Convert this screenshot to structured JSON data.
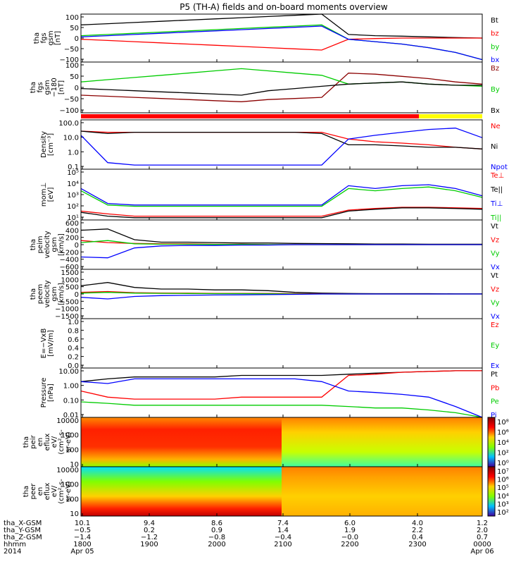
{
  "figure": {
    "title": "P5 (TH-A) fields and on-board moments overview"
  },
  "chart_data": [
    {
      "type": "line",
      "panel_id": "fgs_gsm",
      "ylabel": [
        "tha",
        "fgs",
        "gsm",
        "[nT]"
      ],
      "yticks": [
        "100",
        "50",
        "0",
        "−50",
        "−100"
      ],
      "ylim": [
        -100,
        100
      ],
      "series": [
        {
          "name": "Bt",
          "color": "#000000",
          "values": [
            55,
            60,
            65,
            70,
            75,
            80,
            85,
            90,
            95,
            100,
            15,
            10,
            8,
            5,
            2,
            0
          ]
        },
        {
          "name": "bz",
          "color": "#ff0000",
          "values": [
            -5,
            -10,
            -15,
            -20,
            -25,
            -30,
            -35,
            -40,
            -45,
            -50,
            -5,
            -2,
            0,
            0,
            0,
            0
          ]
        },
        {
          "name": "by",
          "color": "#00cc00",
          "values": [
            10,
            15,
            20,
            25,
            30,
            35,
            40,
            45,
            50,
            55,
            -5,
            -15,
            -25,
            -40,
            -60,
            -90
          ]
        },
        {
          "name": "bx",
          "color": "#0000ff",
          "values": [
            5,
            10,
            15,
            20,
            25,
            30,
            35,
            40,
            45,
            50,
            -5,
            -15,
            -25,
            -40,
            -60,
            -90
          ]
        }
      ]
    },
    {
      "type": "line",
      "panel_id": "fgs_gsm_180",
      "ylabel": [
        "tha",
        "fgs",
        "gsm",
        "−180",
        "[nT]"
      ],
      "yticks": [
        "100",
        "50",
        "0",
        "−50",
        "−100"
      ],
      "ylim": [
        -120,
        110
      ],
      "series": [
        {
          "name": "Bz",
          "color": "#8b0000",
          "values": [
            -40,
            -45,
            -50,
            -55,
            -60,
            -65,
            -70,
            -60,
            -55,
            -50,
            60,
            55,
            45,
            35,
            20,
            10
          ]
        },
        {
          "name": "By",
          "color": "#00cc00",
          "values": [
            20,
            30,
            40,
            50,
            60,
            70,
            80,
            70,
            60,
            50,
            10,
            15,
            20,
            10,
            5,
            0
          ]
        },
        {
          "name": "Bx",
          "color": "#000000",
          "values": [
            -10,
            -15,
            -20,
            -25,
            -30,
            -35,
            -40,
            -20,
            -10,
            0,
            10,
            15,
            20,
            10,
            5,
            5
          ]
        }
      ]
    },
    {
      "type": "line",
      "panel_id": "density",
      "ylabel": [
        "Density",
        "[cm⁻³]"
      ],
      "yticks": [
        "100.0",
        "10.0",
        "1.0",
        "0.1"
      ],
      "ylim": [
        0.05,
        200
      ],
      "log": true,
      "series": [
        {
          "name": "Ne",
          "color": "#ff0000",
          "values": [
            30,
            25,
            25,
            25,
            25,
            25,
            25,
            25,
            25,
            25,
            8,
            5,
            4,
            3,
            2,
            1.5
          ]
        },
        {
          "name": "Ni",
          "color": "#000000",
          "values": [
            30,
            20,
            25,
            25,
            25,
            25,
            25,
            25,
            25,
            20,
            3,
            3,
            2.5,
            2,
            2,
            1.5
          ]
        },
        {
          "name": "Npot",
          "color": "#0000ff",
          "values": [
            15,
            0.15,
            0.1,
            0.1,
            0.1,
            0.1,
            0.1,
            0.1,
            0.1,
            0.1,
            8,
            15,
            25,
            40,
            50,
            10
          ]
        }
      ]
    },
    {
      "type": "line",
      "panel_id": "moms_temp",
      "ylabel": [
        "mom⊥",
        "[eV]"
      ],
      "yticks": [
        "10⁵",
        "10⁴",
        "10³",
        "10²",
        "10¹"
      ],
      "ylim": [
        10,
        100000
      ],
      "log": true,
      "series": [
        {
          "name": "Te⊥",
          "color": "#ff0000",
          "values": [
            50,
            30,
            20,
            20,
            20,
            20,
            20,
            20,
            20,
            20,
            60,
            80,
            100,
            100,
            90,
            80
          ]
        },
        {
          "name": "Te||",
          "color": "#000000",
          "values": [
            40,
            20,
            15,
            15,
            15,
            15,
            15,
            15,
            15,
            15,
            50,
            70,
            90,
            90,
            80,
            70
          ]
        },
        {
          "name": "Ti⊥",
          "color": "#0000ff",
          "values": [
            3000,
            200,
            150,
            150,
            150,
            150,
            150,
            150,
            150,
            150,
            5000,
            3000,
            5000,
            6000,
            3000,
            800
          ]
        },
        {
          "name": "Ti||",
          "color": "#00cc00",
          "values": [
            2000,
            150,
            120,
            120,
            120,
            120,
            120,
            120,
            120,
            120,
            3000,
            2000,
            3000,
            4000,
            2000,
            600
          ]
        }
      ]
    },
    {
      "type": "line",
      "panel_id": "peim_velocity",
      "ylabel": [
        "tha",
        "peim",
        "velocity",
        "gsm",
        "[km/s]"
      ],
      "yticks": [
        "600",
        "400",
        "200",
        "0",
        "−200",
        "−400",
        "−600"
      ],
      "ylim": [
        -600,
        600
      ],
      "series": [
        {
          "name": "Vt",
          "color": "#000000",
          "values": [
            350,
            380,
            120,
            60,
            60,
            50,
            40,
            40,
            30,
            25,
            20,
            15,
            15,
            10,
            10,
            10
          ]
        },
        {
          "name": "Vz",
          "color": "#ff0000",
          "values": [
            100,
            50,
            30,
            20,
            20,
            10,
            10,
            0,
            0,
            0,
            0,
            0,
            0,
            0,
            0,
            0
          ]
        },
        {
          "name": "Vy",
          "color": "#00cc00",
          "values": [
            50,
            100,
            20,
            10,
            10,
            5,
            5,
            0,
            0,
            0,
            0,
            0,
            0,
            0,
            0,
            0
          ]
        },
        {
          "name": "Vx",
          "color": "#0000ff",
          "values": [
            -300,
            -320,
            -80,
            -30,
            -20,
            -20,
            -10,
            -10,
            0,
            0,
            0,
            0,
            0,
            0,
            0,
            0
          ]
        }
      ]
    },
    {
      "type": "line",
      "panel_id": "peem_velocity",
      "ylabel": [
        "tha",
        "peem",
        "velocity",
        "gsm",
        "[km/s]"
      ],
      "yticks": [
        "1500",
        "1000",
        "500",
        "0",
        "−500",
        "−1000",
        "−1500"
      ],
      "ylim": [
        -1500,
        1500
      ],
      "series": [
        {
          "name": "Vt",
          "color": "#000000",
          "values": [
            500,
            700,
            400,
            300,
            300,
            250,
            250,
            200,
            100,
            50,
            30,
            20,
            20,
            20,
            10,
            10
          ]
        },
        {
          "name": "Vz",
          "color": "#ff0000",
          "values": [
            100,
            150,
            80,
            60,
            50,
            40,
            40,
            30,
            20,
            10,
            0,
            0,
            0,
            0,
            0,
            0
          ]
        },
        {
          "name": "Vy",
          "color": "#00cc00",
          "values": [
            50,
            100,
            50,
            40,
            30,
            20,
            20,
            10,
            0,
            0,
            0,
            0,
            0,
            0,
            0,
            0
          ]
        },
        {
          "name": "Vx",
          "color": "#0000ff",
          "values": [
            -200,
            -300,
            -150,
            -100,
            -80,
            -60,
            -50,
            -40,
            -20,
            0,
            0,
            0,
            0,
            0,
            0,
            0
          ]
        }
      ]
    },
    {
      "type": "line",
      "panel_id": "efield",
      "ylabel": [
        "E=−VxB",
        "[mV/m]"
      ],
      "yticks": [
        "1.0",
        "0.8",
        "0.6",
        "0.4",
        "0.2",
        "0.0"
      ],
      "ylim": [
        0,
        1
      ],
      "series": [
        {
          "name": "Ez",
          "color": "#ff0000",
          "values": []
        },
        {
          "name": "Ey",
          "color": "#00cc00",
          "values": []
        },
        {
          "name": "Ex",
          "color": "#0000ff",
          "values": []
        }
      ]
    },
    {
      "type": "line",
      "panel_id": "pressure",
      "ylabel": [
        "Pressure",
        "[nPa]"
      ],
      "yticks": [
        "10.00",
        "1.00",
        "0.10",
        "0.01"
      ],
      "ylim": [
        0.01,
        15
      ],
      "log": true,
      "series": [
        {
          "name": "Pt",
          "color": "#000000",
          "values": [
            2,
            3,
            4,
            4,
            4,
            4,
            5,
            5,
            5,
            5,
            6,
            7,
            8,
            9,
            10,
            10
          ]
        },
        {
          "name": "Pb",
          "color": "#ff0000",
          "values": [
            0.5,
            0.2,
            0.15,
            0.15,
            0.15,
            0.15,
            0.2,
            0.2,
            0.2,
            0.2,
            5,
            6,
            8,
            9,
            10,
            10
          ]
        },
        {
          "name": "Pe",
          "color": "#00cc00",
          "values": [
            0.1,
            0.08,
            0.06,
            0.06,
            0.06,
            0.06,
            0.06,
            0.06,
            0.06,
            0.06,
            0.05,
            0.04,
            0.04,
            0.03,
            0.02,
            0.01
          ]
        },
        {
          "name": "Pi",
          "color": "#0000ff",
          "values": [
            2,
            1.5,
            3,
            3,
            3,
            3,
            3,
            3,
            3,
            2,
            0.5,
            0.4,
            0.3,
            0.2,
            0.05,
            0.01
          ]
        }
      ]
    },
    {
      "type": "heatmap",
      "panel_id": "peir_spec",
      "ylabel": [
        "tha",
        "peir",
        "en",
        "eflux",
        "eV/",
        "(cm²-s-",
        "sr-eV)"
      ],
      "yticks": [
        "10000",
        "1000",
        "100",
        "10"
      ],
      "colorbar_ticks": [
        "10⁸",
        "10⁶",
        "10⁴",
        "10²",
        "10⁰"
      ]
    },
    {
      "type": "heatmap",
      "panel_id": "peer_spec",
      "ylabel": [
        "tha",
        "peer",
        "en",
        "eflux",
        "eV/",
        "(cm²-s-",
        "sr-eV)"
      ],
      "yticks": [
        "10000",
        "1000",
        "100",
        "10"
      ],
      "colorbar_ticks": [
        "10⁷",
        "10⁶",
        "10⁵",
        "10⁴",
        "10³",
        "10²"
      ]
    }
  ],
  "xaxis": {
    "rows": [
      {
        "label": "tha_X-GSM",
        "values": [
          "10.1",
          "9.4",
          "8.6",
          "7.4",
          "6.0",
          "4.0",
          "1.2"
        ]
      },
      {
        "label": "tha_Y-GSM",
        "values": [
          "−0.5",
          "0.2",
          "0.9",
          "1.4",
          "1.9",
          "2.2",
          "2.0"
        ]
      },
      {
        "label": "tha_Z-GSM",
        "values": [
          "−1.4",
          "−1.2",
          "−0.8",
          "−0.4",
          "−0.0",
          "0.4",
          "0.7"
        ]
      },
      {
        "label": "hhmm",
        "values": [
          "1800",
          "1900",
          "2000",
          "2100",
          "2200",
          "2300",
          "0000"
        ]
      },
      {
        "label": "2014",
        "values": [
          "Apr 05",
          "",
          "",
          "",
          "",
          "",
          "Apr 06"
        ]
      }
    ]
  }
}
